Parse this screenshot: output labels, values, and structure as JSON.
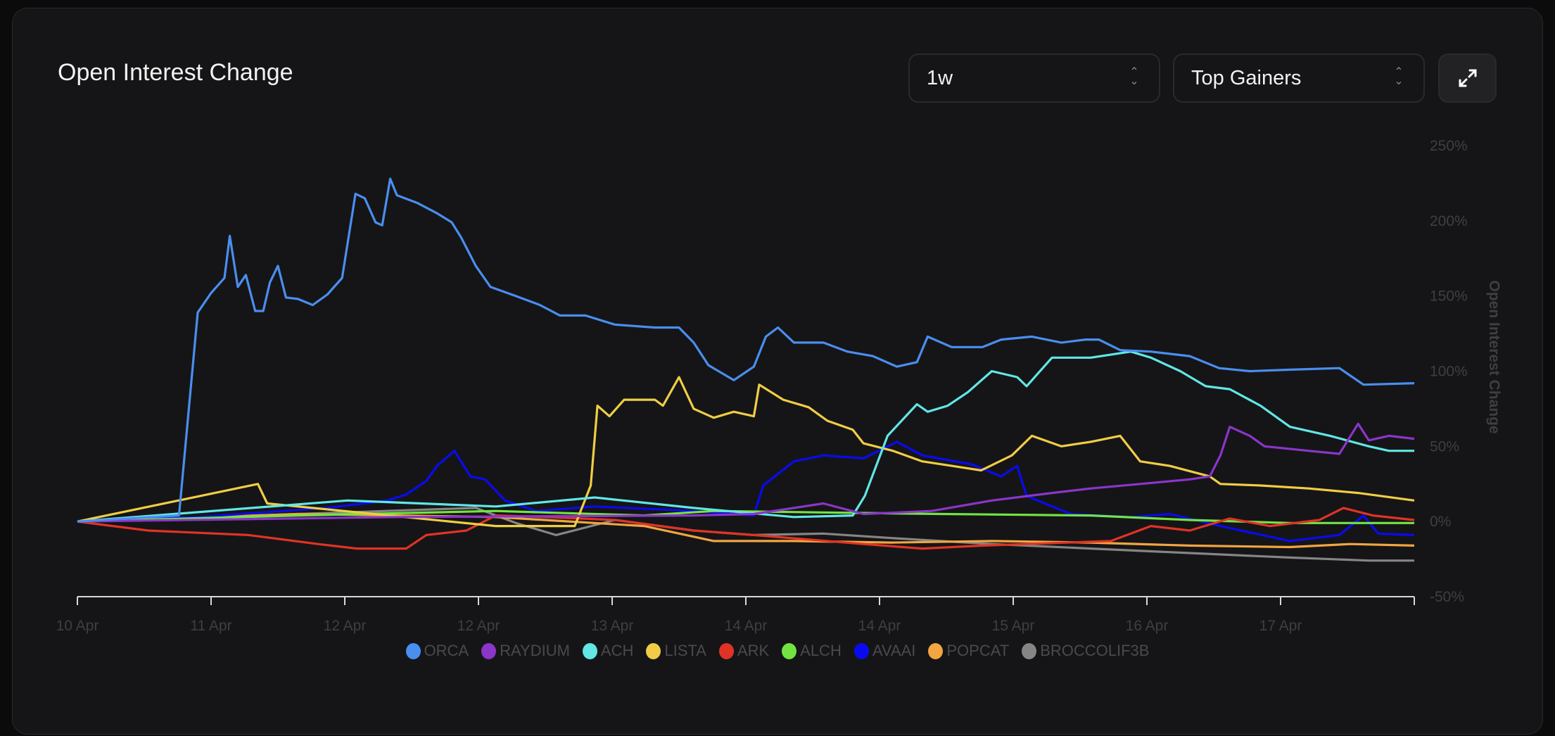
{
  "header": {
    "title": "Open Interest Change",
    "timeframe": "1w",
    "filter": "Top Gainers",
    "expand_icon": "expand-icon"
  },
  "chart_data": {
    "type": "line",
    "title": "Open Interest Change",
    "ylabel": "Open Interest Change",
    "xlabel": "",
    "ylim": [
      -50,
      250
    ],
    "yticks": [
      "250%",
      "200%",
      "150%",
      "100%",
      "50%",
      "0%",
      "-50%"
    ],
    "ytick_values": [
      250,
      200,
      150,
      100,
      50,
      0,
      -50
    ],
    "xlim": [
      0,
      100
    ],
    "xtick_positions": [
      0,
      10,
      20,
      30,
      40,
      50,
      60,
      70,
      80,
      90,
      100
    ],
    "xtick_labels": [
      "10 Apr",
      "11 Apr",
      "12 Apr",
      "12 Apr",
      "13 Apr",
      "14 Apr",
      "14 Apr",
      "15 Apr",
      "16 Apr",
      "17 Apr",
      ""
    ],
    "legend_position": "bottom-center",
    "series": [
      {
        "name": "ORCA",
        "color": "#4a8ef0",
        "points": [
          [
            0,
            0
          ],
          [
            7.6,
            4
          ],
          [
            9,
            139
          ],
          [
            10,
            152
          ],
          [
            11,
            162
          ],
          [
            11.4,
            190
          ],
          [
            12,
            156
          ],
          [
            12.6,
            164
          ],
          [
            13.3,
            140
          ],
          [
            13.9,
            140
          ],
          [
            14.4,
            159
          ],
          [
            15,
            170
          ],
          [
            15.6,
            149
          ],
          [
            16.5,
            148
          ],
          [
            17.6,
            144
          ],
          [
            18.7,
            151
          ],
          [
            19.8,
            162
          ],
          [
            20.8,
            218
          ],
          [
            21.5,
            215
          ],
          [
            22.3,
            199
          ],
          [
            22.8,
            197
          ],
          [
            23.4,
            228
          ],
          [
            23.9,
            217
          ],
          [
            25.4,
            212
          ],
          [
            26.9,
            205
          ],
          [
            28,
            199
          ],
          [
            28.7,
            189
          ],
          [
            29.8,
            170
          ],
          [
            30.9,
            156
          ],
          [
            32.8,
            150
          ],
          [
            34.6,
            144
          ],
          [
            36.1,
            137
          ],
          [
            38,
            137
          ],
          [
            40.2,
            131
          ],
          [
            43.2,
            129
          ],
          [
            45,
            129
          ],
          [
            46.1,
            119
          ],
          [
            47.2,
            104
          ],
          [
            49.1,
            94
          ],
          [
            50.6,
            103
          ],
          [
            51.5,
            123
          ],
          [
            52.4,
            129
          ],
          [
            53.6,
            119
          ],
          [
            55.8,
            119
          ],
          [
            57.6,
            113
          ],
          [
            59.5,
            110
          ],
          [
            61.3,
            103
          ],
          [
            62.8,
            106
          ],
          [
            63.6,
            123
          ],
          [
            65.4,
            116
          ],
          [
            67.7,
            116
          ],
          [
            69.1,
            121
          ],
          [
            71.4,
            123
          ],
          [
            73.6,
            119
          ],
          [
            75.4,
            121
          ],
          [
            76.4,
            121
          ],
          [
            78,
            114
          ],
          [
            80.3,
            113
          ],
          [
            83.2,
            110
          ],
          [
            85.4,
            102
          ],
          [
            87.7,
            100
          ],
          [
            90.7,
            101
          ],
          [
            94.4,
            102
          ],
          [
            96.2,
            91
          ],
          [
            100,
            92
          ]
        ]
      },
      {
        "name": "RAYDIUM",
        "color": "#8b35c9",
        "points": [
          [
            0,
            0
          ],
          [
            23.9,
            3
          ],
          [
            46.1,
            4
          ],
          [
            50.6,
            5
          ],
          [
            55.8,
            12
          ],
          [
            58.8,
            5
          ],
          [
            63.9,
            7
          ],
          [
            68.4,
            14
          ],
          [
            72.9,
            19
          ],
          [
            75.8,
            22
          ],
          [
            79.5,
            25
          ],
          [
            83.2,
            28
          ],
          [
            84.7,
            30
          ],
          [
            85.5,
            44
          ],
          [
            86.2,
            63
          ],
          [
            87.7,
            57
          ],
          [
            88.8,
            50
          ],
          [
            92.1,
            47
          ],
          [
            94.4,
            45
          ],
          [
            95.8,
            65
          ],
          [
            96.6,
            54
          ],
          [
            98.1,
            57
          ],
          [
            100,
            55
          ]
        ]
      },
      {
        "name": "ACH",
        "color": "#62e6e6",
        "points": [
          [
            0,
            0
          ],
          [
            20.2,
            14
          ],
          [
            31.3,
            10
          ],
          [
            38.7,
            16
          ],
          [
            46.1,
            9
          ],
          [
            53.6,
            3
          ],
          [
            58,
            4
          ],
          [
            58.9,
            17
          ],
          [
            60.6,
            57
          ],
          [
            62.8,
            78
          ],
          [
            63.6,
            73
          ],
          [
            65.1,
            77
          ],
          [
            66.6,
            86
          ],
          [
            68.4,
            100
          ],
          [
            70.3,
            96
          ],
          [
            71,
            90
          ],
          [
            72.9,
            109
          ],
          [
            75.8,
            109
          ],
          [
            78.8,
            113
          ],
          [
            80.3,
            109
          ],
          [
            82.5,
            100
          ],
          [
            84.4,
            90
          ],
          [
            86.2,
            88
          ],
          [
            88.5,
            77
          ],
          [
            90.7,
            63
          ],
          [
            93.7,
            57
          ],
          [
            96.6,
            50
          ],
          [
            98.1,
            47
          ],
          [
            100,
            47
          ]
        ]
      },
      {
        "name": "LISTA",
        "color": "#f0cd45",
        "points": [
          [
            0,
            0
          ],
          [
            13.5,
            25
          ],
          [
            14.2,
            12
          ],
          [
            31.3,
            -3
          ],
          [
            37.2,
            -3
          ],
          [
            38.4,
            24
          ],
          [
            38.9,
            77
          ],
          [
            39.8,
            70
          ],
          [
            40.9,
            81
          ],
          [
            43.2,
            81
          ],
          [
            43.8,
            77
          ],
          [
            45,
            96
          ],
          [
            46.1,
            75
          ],
          [
            47.6,
            69
          ],
          [
            49.1,
            73
          ],
          [
            50.6,
            70
          ],
          [
            51,
            91
          ],
          [
            52.8,
            81
          ],
          [
            54.7,
            76
          ],
          [
            56.1,
            67
          ],
          [
            58,
            61
          ],
          [
            58.8,
            52
          ],
          [
            61,
            47
          ],
          [
            63.2,
            40
          ],
          [
            65.4,
            37
          ],
          [
            67.6,
            34
          ],
          [
            69.9,
            44
          ],
          [
            71.4,
            57
          ],
          [
            73.6,
            50
          ],
          [
            75.8,
            53
          ],
          [
            78,
            57
          ],
          [
            79.5,
            40
          ],
          [
            81.7,
            37
          ],
          [
            84.7,
            30
          ],
          [
            85.5,
            25
          ],
          [
            88.4,
            24
          ],
          [
            92.1,
            22
          ],
          [
            95.8,
            19
          ],
          [
            100,
            14
          ]
        ]
      },
      {
        "name": "ARK",
        "color": "#e03325",
        "points": [
          [
            0,
            0
          ],
          [
            5.3,
            -6
          ],
          [
            12.8,
            -9
          ],
          [
            18,
            -15
          ],
          [
            20.9,
            -18
          ],
          [
            24.6,
            -18
          ],
          [
            26.1,
            -9
          ],
          [
            29.1,
            -6
          ],
          [
            31.3,
            4
          ],
          [
            35,
            3
          ],
          [
            40.2,
            1
          ],
          [
            46.1,
            -6
          ],
          [
            50.6,
            -9
          ],
          [
            58.8,
            -15
          ],
          [
            63.2,
            -18
          ],
          [
            67.7,
            -16
          ],
          [
            77.3,
            -13
          ],
          [
            80.3,
            -3
          ],
          [
            83.2,
            -6
          ],
          [
            86.2,
            2
          ],
          [
            89.2,
            -3
          ],
          [
            92.9,
            1
          ],
          [
            94.7,
            9
          ],
          [
            96.9,
            4
          ],
          [
            100,
            1
          ]
        ]
      },
      {
        "name": "ALCH",
        "color": "#72e442",
        "points": [
          [
            0,
            0
          ],
          [
            16.5,
            4
          ],
          [
            31.3,
            7
          ],
          [
            42.4,
            4
          ],
          [
            47.6,
            7
          ],
          [
            55.8,
            6
          ],
          [
            64.7,
            5
          ],
          [
            75.8,
            4
          ],
          [
            83.2,
            1
          ],
          [
            90.7,
            -1
          ],
          [
            100,
            -1
          ]
        ]
      },
      {
        "name": "AVAAI",
        "color": "#0a0af0",
        "points": [
          [
            0,
            0
          ],
          [
            9,
            3
          ],
          [
            18.7,
            9
          ],
          [
            23.2,
            14
          ],
          [
            24.6,
            18
          ],
          [
            26.1,
            27
          ],
          [
            26.9,
            37
          ],
          [
            28.2,
            47
          ],
          [
            29.4,
            30
          ],
          [
            30.5,
            28
          ],
          [
            32,
            14
          ],
          [
            34.3,
            7
          ],
          [
            38.7,
            10
          ],
          [
            46.1,
            7
          ],
          [
            50.6,
            4
          ],
          [
            51.3,
            24
          ],
          [
            53.6,
            40
          ],
          [
            55.8,
            44
          ],
          [
            58.8,
            42
          ],
          [
            61.3,
            53
          ],
          [
            63.2,
            44
          ],
          [
            66.9,
            38
          ],
          [
            69.1,
            30
          ],
          [
            70.3,
            37
          ],
          [
            71,
            17
          ],
          [
            74.3,
            5
          ],
          [
            78.8,
            3
          ],
          [
            81.7,
            5
          ],
          [
            85.5,
            -3
          ],
          [
            90.7,
            -13
          ],
          [
            94.4,
            -9
          ],
          [
            96.2,
            4
          ],
          [
            97.3,
            -8
          ],
          [
            100,
            -9
          ]
        ]
      },
      {
        "name": "POPCAT",
        "color": "#f2a541",
        "points": [
          [
            0,
            0
          ],
          [
            16.5,
            5
          ],
          [
            31.3,
            3
          ],
          [
            42.4,
            -3
          ],
          [
            47.6,
            -13
          ],
          [
            53.6,
            -13
          ],
          [
            60.9,
            -14
          ],
          [
            68.4,
            -13
          ],
          [
            75.8,
            -14
          ],
          [
            83.2,
            -16
          ],
          [
            90.7,
            -17
          ],
          [
            95.2,
            -15
          ],
          [
            100,
            -16
          ]
        ]
      },
      {
        "name": "BROCCOLIF3B",
        "color": "#858585",
        "points": [
          [
            0,
            0
          ],
          [
            16.5,
            5
          ],
          [
            29.8,
            9
          ],
          [
            32.8,
            -1
          ],
          [
            35.8,
            -9
          ],
          [
            40.2,
            1
          ],
          [
            46.1,
            -6
          ],
          [
            50.6,
            -9
          ],
          [
            55.8,
            -8
          ],
          [
            60.9,
            -11
          ],
          [
            68.4,
            -15
          ],
          [
            75.8,
            -18
          ],
          [
            83.2,
            -21
          ],
          [
            90.7,
            -24
          ],
          [
            96.6,
            -26
          ],
          [
            100,
            -26
          ]
        ]
      }
    ]
  }
}
